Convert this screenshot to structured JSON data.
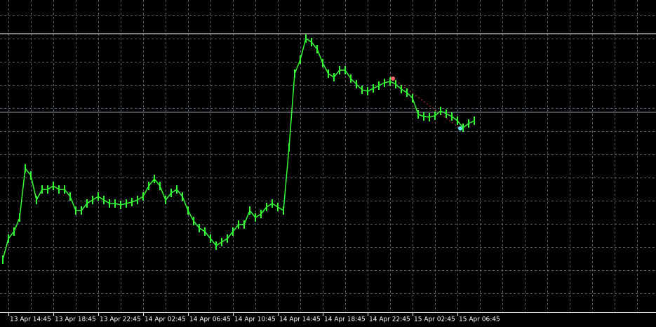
{
  "chart_data": {
    "type": "line",
    "color": "#33ff33",
    "categories": [
      null,
      "13 Apr 14:45",
      null,
      null,
      null,
      null,
      null,
      null,
      null,
      "13 Apr 18:45",
      null,
      null,
      null,
      null,
      null,
      null,
      null,
      "13 Apr 22:45",
      null,
      null,
      null,
      null,
      null,
      null,
      null,
      "14 Apr 02:45",
      null,
      null,
      null,
      null,
      null,
      null,
      null,
      "14 Apr 06:45",
      null,
      null,
      null,
      null,
      null,
      null,
      null,
      "14 Apr 10:45",
      null,
      null,
      null,
      null,
      null,
      null,
      null,
      "14 Apr 14:45",
      null,
      null,
      null,
      null,
      null,
      null,
      null,
      "14 Apr 18:45",
      null,
      null,
      null,
      null,
      null,
      null,
      null,
      "14 Apr 22:45",
      null,
      null,
      null,
      null,
      null,
      null,
      null,
      "15 Apr 02:45",
      null,
      null,
      null,
      null,
      null,
      null,
      null,
      "15 Apr 06:45",
      null,
      null,
      null
    ],
    "values": [
      70,
      100,
      110,
      130,
      200,
      190,
      155,
      170,
      170,
      175,
      170,
      170,
      160,
      140,
      140,
      150,
      155,
      160,
      155,
      150,
      150,
      148,
      150,
      152,
      155,
      160,
      175,
      185,
      175,
      155,
      165,
      170,
      160,
      140,
      125,
      115,
      110,
      100,
      90,
      95,
      100,
      110,
      120,
      120,
      140,
      130,
      135,
      145,
      150,
      145,
      140,
      230,
      335,
      355,
      385,
      380,
      370,
      350,
      335,
      330,
      340,
      340,
      328,
      320,
      312,
      310,
      314,
      318,
      322,
      324,
      320,
      313,
      308,
      300,
      277,
      274,
      273,
      275,
      282,
      278,
      274,
      268,
      258,
      264,
      268
    ],
    "ylim": [
      0,
      440
    ],
    "grid": true
  }
}
